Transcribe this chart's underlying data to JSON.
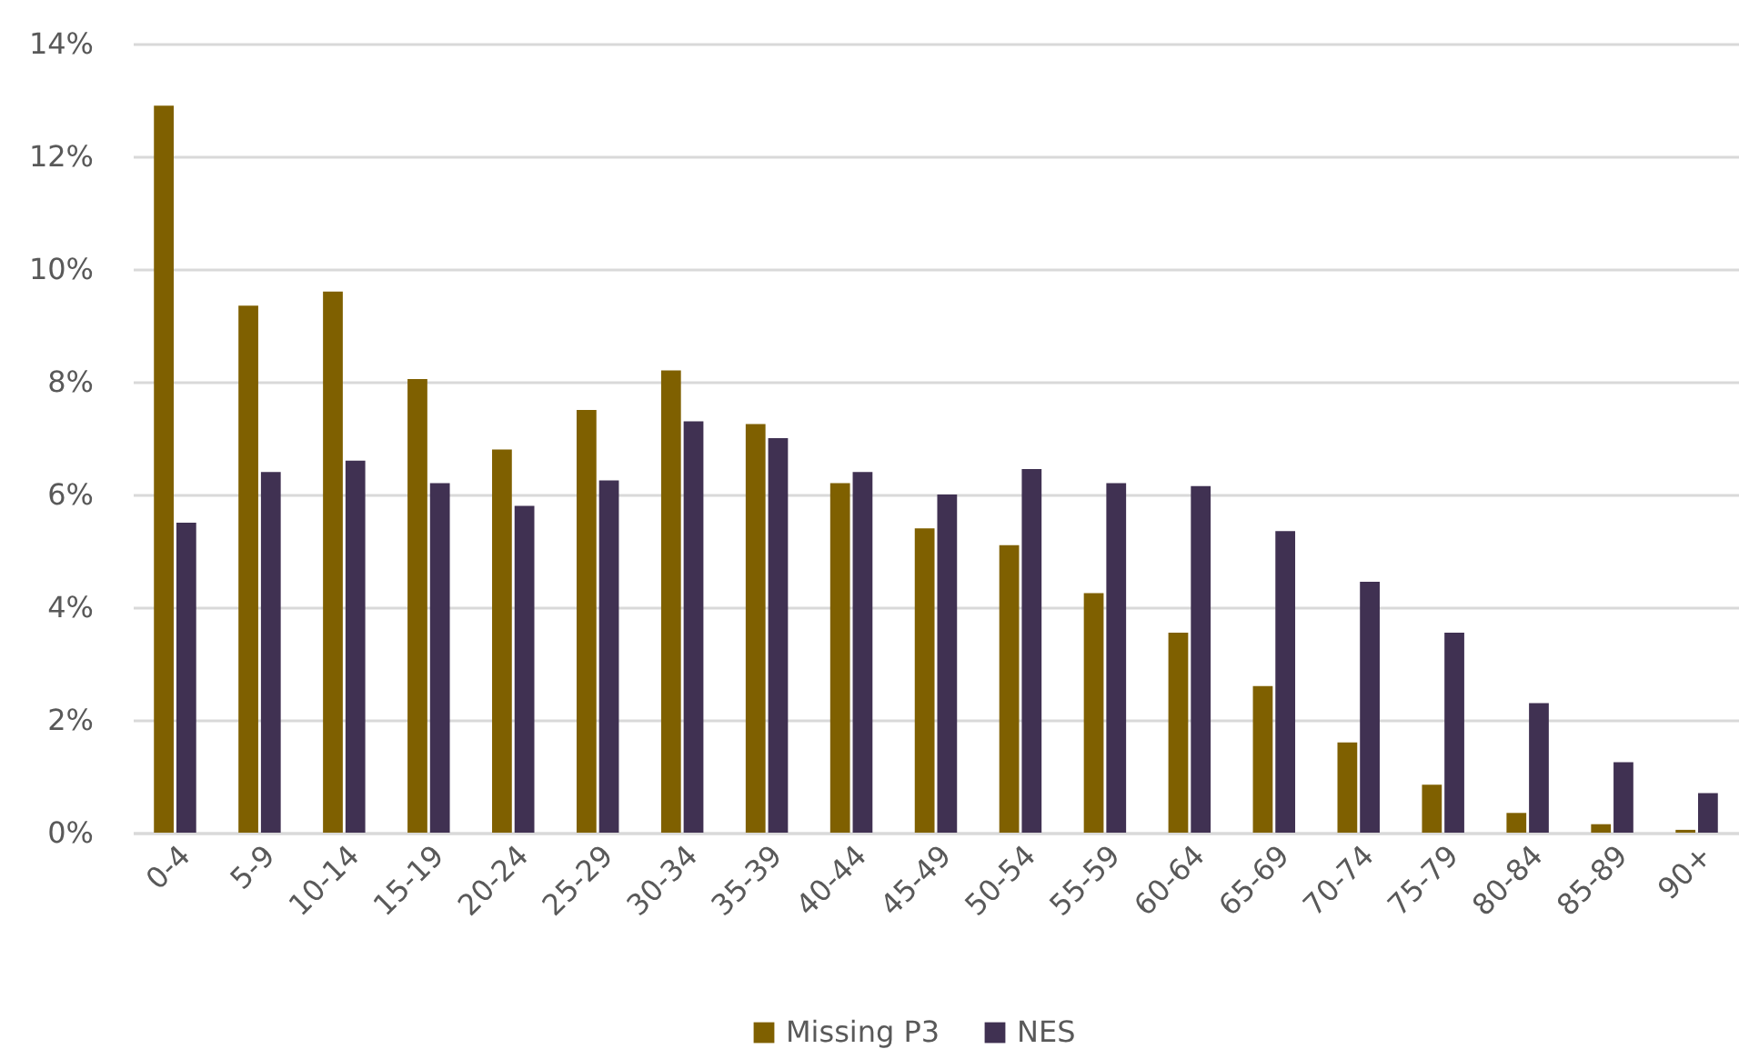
{
  "chart_data": {
    "type": "bar",
    "categories": [
      "0-4",
      "5-9",
      "10-14",
      "15-19",
      "20-24",
      "25-29",
      "30-34",
      "35-39",
      "40-44",
      "45-49",
      "50-54",
      "55-59",
      "60-64",
      "65-69",
      "70-74",
      "75-79",
      "80-84",
      "85-89",
      "90+"
    ],
    "series": [
      {
        "name": "Missing P3",
        "color": "#7f6000",
        "values": [
          12.9,
          9.35,
          9.6,
          8.05,
          6.8,
          7.5,
          8.2,
          7.25,
          6.2,
          5.4,
          5.1,
          4.25,
          3.55,
          2.6,
          1.6,
          0.85,
          0.35,
          0.15,
          0.05
        ]
      },
      {
        "name": "NES",
        "color": "#403152",
        "values": [
          5.5,
          6.4,
          6.6,
          6.2,
          5.8,
          6.25,
          7.3,
          7.0,
          6.4,
          6.0,
          6.45,
          6.2,
          6.15,
          5.35,
          4.45,
          3.55,
          2.3,
          1.25,
          0.7
        ]
      }
    ],
    "ylim": [
      0,
      14
    ],
    "yticks": [
      {
        "value": 0,
        "label": "0%"
      },
      {
        "value": 2,
        "label": "2%"
      },
      {
        "value": 4,
        "label": "4%"
      },
      {
        "value": 6,
        "label": "6%"
      },
      {
        "value": 8,
        "label": "8%"
      },
      {
        "value": 10,
        "label": "10%"
      },
      {
        "value": 12,
        "label": "12%"
      },
      {
        "value": 14,
        "label": "14%"
      }
    ],
    "grid": "y",
    "legend": "bottom"
  }
}
